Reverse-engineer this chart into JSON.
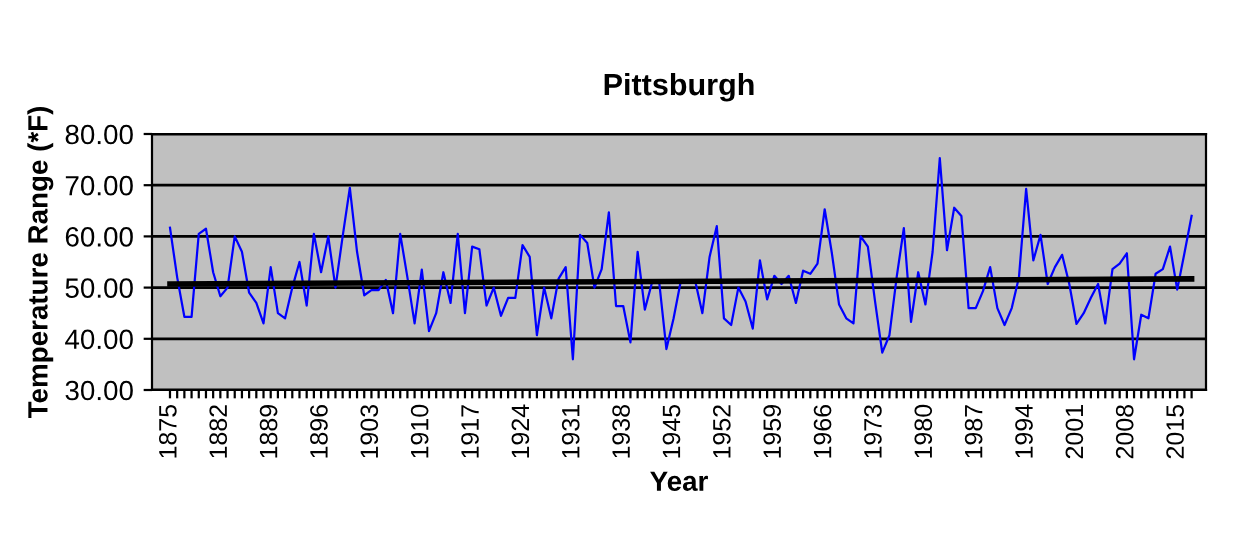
{
  "chart_data": {
    "type": "line",
    "title": "Pittsburgh",
    "xlabel": "Year",
    "ylabel": "Temperature Range (*F)",
    "series": [
      {
        "color": "#0000ff",
        "x": [
          1875,
          1876,
          1877,
          1878,
          1879,
          1880,
          1881,
          1882,
          1883,
          1884,
          1885,
          1886,
          1887,
          1888,
          1889,
          1890,
          1891,
          1892,
          1893,
          1894,
          1895,
          1896,
          1897,
          1898,
          1899,
          1900,
          1901,
          1902,
          1903,
          1904,
          1905,
          1906,
          1907,
          1908,
          1909,
          1910,
          1911,
          1912,
          1913,
          1914,
          1915,
          1916,
          1917,
          1918,
          1919,
          1920,
          1921,
          1922,
          1923,
          1924,
          1925,
          1926,
          1927,
          1928,
          1929,
          1930,
          1931,
          1932,
          1933,
          1934,
          1935,
          1936,
          1937,
          1938,
          1939,
          1940,
          1941,
          1942,
          1943,
          1944,
          1945,
          1946,
          1947,
          1948,
          1949,
          1950,
          1951,
          1952,
          1953,
          1954,
          1955,
          1956,
          1957,
          1958,
          1959,
          1960,
          1961,
          1962,
          1963,
          1964,
          1965,
          1966,
          1967,
          1968,
          1969,
          1970,
          1971,
          1972,
          1973,
          1974,
          1975,
          1976,
          1977,
          1978,
          1979,
          1980,
          1981,
          1982,
          1983,
          1984,
          1985,
          1986,
          1987,
          1988,
          1989,
          1990,
          1991,
          1992,
          1993,
          1994,
          1995,
          1996,
          1997,
          1998,
          1999,
          2000,
          2001,
          2002,
          2003,
          2004,
          2005,
          2006,
          2007,
          2008,
          2009,
          2010,
          2011,
          2012,
          2013,
          2014,
          2015,
          2016,
          2017
        ],
        "values": [
          61.7,
          52,
          44.3,
          44.3,
          60.5,
          61.5,
          53,
          48.3,
          50,
          60,
          57,
          49,
          47,
          43,
          54,
          45,
          44,
          50,
          55,
          46.5,
          60.5,
          53,
          60,
          50,
          60,
          69.5,
          57,
          48.5,
          49.5,
          49.5,
          51.5,
          45,
          60.5,
          52,
          43,
          53.5,
          41.5,
          45,
          53,
          47,
          60.5,
          45,
          58,
          57.5,
          46.5,
          50,
          44.5,
          48,
          48,
          58.3,
          56,
          40.7,
          50,
          44,
          51.7,
          54,
          36,
          60.3,
          58.7,
          50,
          53.6,
          64.7,
          46.4,
          46.4,
          39.3,
          57,
          45.7,
          51,
          51,
          38,
          44,
          51.3,
          51.3,
          51.3,
          45,
          56,
          62,
          44,
          42.7,
          50,
          47.3,
          42,
          55.3,
          47.7,
          52.3,
          50.7,
          52.3,
          47,
          53.3,
          52.7,
          54.7,
          65.3,
          56.7,
          46.7,
          44,
          43,
          60,
          58,
          47.3,
          37.3,
          40.7,
          52,
          61.6,
          43.3,
          53,
          46.7,
          57,
          75.3,
          57.3,
          65.6,
          64,
          46,
          46,
          49.3,
          54,
          46,
          42.7,
          46,
          52,
          69.3,
          55.3,
          60.3,
          50.7,
          54,
          56.4,
          50.7,
          42.9,
          45,
          48,
          50.7,
          43,
          53.6,
          54.7,
          56.7,
          36,
          44.7,
          44,
          52.7,
          53.6,
          58,
          49.6,
          56.7,
          64
        ]
      },
      {
        "color": "#000000",
        "x": [
          1875,
          2017
        ],
        "values": [
          50.7,
          51.7
        ]
      }
    ],
    "xlim": [
      1872.5,
      2019
    ],
    "ylim": [
      30,
      80
    ],
    "yticks": [
      {
        "value": 30,
        "label": "30.00"
      },
      {
        "value": 40,
        "label": "40.00"
      },
      {
        "value": 50,
        "label": "50.00"
      },
      {
        "value": 60,
        "label": "60.00"
      },
      {
        "value": 70,
        "label": "70.00"
      },
      {
        "value": 80,
        "label": "80.00"
      }
    ],
    "xticks": [
      1875,
      {
        "value": 1876,
        "label": null
      },
      {
        "value": 1877,
        "label": null
      },
      {
        "value": 1878,
        "label": null
      },
      {
        "value": 1879,
        "label": null
      },
      {
        "value": 1880,
        "label": null
      },
      {
        "value": 1881,
        "label": null
      },
      1882,
      {
        "value": 1883,
        "label": null
      },
      {
        "value": 1884,
        "label": null
      },
      {
        "value": 1885,
        "label": null
      },
      {
        "value": 1886,
        "label": null
      },
      {
        "value": 1887,
        "label": null
      },
      {
        "value": 1888,
        "label": null
      },
      1889,
      {
        "value": 1890,
        "label": null
      },
      {
        "value": 1891,
        "label": null
      },
      {
        "value": 1892,
        "label": null
      },
      {
        "value": 1893,
        "label": null
      },
      {
        "value": 1894,
        "label": null
      },
      {
        "value": 1895,
        "label": null
      },
      1896,
      {
        "value": 1897,
        "label": null
      },
      {
        "value": 1898,
        "label": null
      },
      {
        "value": 1899,
        "label": null
      },
      {
        "value": 1900,
        "label": null
      },
      {
        "value": 1901,
        "label": null
      },
      {
        "value": 1902,
        "label": null
      },
      1903,
      {
        "value": 1904,
        "label": null
      },
      {
        "value": 1905,
        "label": null
      },
      {
        "value": 1906,
        "label": null
      },
      {
        "value": 1907,
        "label": null
      },
      {
        "value": 1908,
        "label": null
      },
      {
        "value": 1909,
        "label": null
      },
      1910,
      {
        "value": 1911,
        "label": null
      },
      {
        "value": 1912,
        "label": null
      },
      {
        "value": 1913,
        "label": null
      },
      {
        "value": 1914,
        "label": null
      },
      {
        "value": 1915,
        "label": null
      },
      {
        "value": 1916,
        "label": null
      },
      1917,
      {
        "value": 1918,
        "label": null
      },
      {
        "value": 1919,
        "label": null
      },
      {
        "value": 1920,
        "label": null
      },
      {
        "value": 1921,
        "label": null
      },
      {
        "value": 1922,
        "label": null
      },
      {
        "value": 1923,
        "label": null
      },
      1924,
      {
        "value": 1925,
        "label": null
      },
      {
        "value": 1926,
        "label": null
      },
      {
        "value": 1927,
        "label": null
      },
      {
        "value": 1928,
        "label": null
      },
      {
        "value": 1929,
        "label": null
      },
      {
        "value": 1930,
        "label": null
      },
      1931,
      {
        "value": 1932,
        "label": null
      },
      {
        "value": 1933,
        "label": null
      },
      {
        "value": 1934,
        "label": null
      },
      {
        "value": 1935,
        "label": null
      },
      {
        "value": 1936,
        "label": null
      },
      {
        "value": 1937,
        "label": null
      },
      1938,
      {
        "value": 1939,
        "label": null
      },
      {
        "value": 1940,
        "label": null
      },
      {
        "value": 1941,
        "label": null
      },
      {
        "value": 1942,
        "label": null
      },
      {
        "value": 1943,
        "label": null
      },
      {
        "value": 1944,
        "label": null
      },
      1945,
      {
        "value": 1946,
        "label": null
      },
      {
        "value": 1947,
        "label": null
      },
      {
        "value": 1948,
        "label": null
      },
      {
        "value": 1949,
        "label": null
      },
      {
        "value": 1950,
        "label": null
      },
      {
        "value": 1951,
        "label": null
      },
      1952,
      {
        "value": 1953,
        "label": null
      },
      {
        "value": 1954,
        "label": null
      },
      {
        "value": 1955,
        "label": null
      },
      {
        "value": 1956,
        "label": null
      },
      {
        "value": 1957,
        "label": null
      },
      {
        "value": 1958,
        "label": null
      },
      1959,
      {
        "value": 1960,
        "label": null
      },
      {
        "value": 1961,
        "label": null
      },
      {
        "value": 1962,
        "label": null
      },
      {
        "value": 1963,
        "label": null
      },
      {
        "value": 1964,
        "label": null
      },
      {
        "value": 1965,
        "label": null
      },
      1966,
      {
        "value": 1967,
        "label": null
      },
      {
        "value": 1968,
        "label": null
      },
      {
        "value": 1969,
        "label": null
      },
      {
        "value": 1970,
        "label": null
      },
      {
        "value": 1971,
        "label": null
      },
      {
        "value": 1972,
        "label": null
      },
      1973,
      {
        "value": 1974,
        "label": null
      },
      {
        "value": 1975,
        "label": null
      },
      {
        "value": 1976,
        "label": null
      },
      {
        "value": 1977,
        "label": null
      },
      {
        "value": 1978,
        "label": null
      },
      {
        "value": 1979,
        "label": null
      },
      1980,
      {
        "value": 1981,
        "label": null
      },
      {
        "value": 1982,
        "label": null
      },
      {
        "value": 1983,
        "label": null
      },
      {
        "value": 1984,
        "label": null
      },
      {
        "value": 1985,
        "label": null
      },
      {
        "value": 1986,
        "label": null
      },
      1987,
      {
        "value": 1988,
        "label": null
      },
      {
        "value": 1989,
        "label": null
      },
      {
        "value": 1990,
        "label": null
      },
      {
        "value": 1991,
        "label": null
      },
      {
        "value": 1992,
        "label": null
      },
      {
        "value": 1993,
        "label": null
      },
      1994,
      {
        "value": 1995,
        "label": null
      },
      {
        "value": 1996,
        "label": null
      },
      {
        "value": 1997,
        "label": null
      },
      {
        "value": 1998,
        "label": null
      },
      {
        "value": 1999,
        "label": null
      },
      {
        "value": 2000,
        "label": null
      },
      2001,
      {
        "value": 2002,
        "label": null
      },
      {
        "value": 2003,
        "label": null
      },
      {
        "value": 2004,
        "label": null
      },
      {
        "value": 2005,
        "label": null
      },
      {
        "value": 2006,
        "label": null
      },
      {
        "value": 2007,
        "label": null
      },
      2008,
      {
        "value": 2009,
        "label": null
      },
      {
        "value": 2010,
        "label": null
      },
      {
        "value": 2011,
        "label": null
      },
      {
        "value": 2012,
        "label": null
      },
      {
        "value": 2013,
        "label": null
      },
      {
        "value": 2014,
        "label": null
      },
      2015,
      {
        "value": 2016,
        "label": null
      },
      {
        "value": 2017,
        "label": null
      }
    ],
    "grid": "y",
    "legend": false
  }
}
